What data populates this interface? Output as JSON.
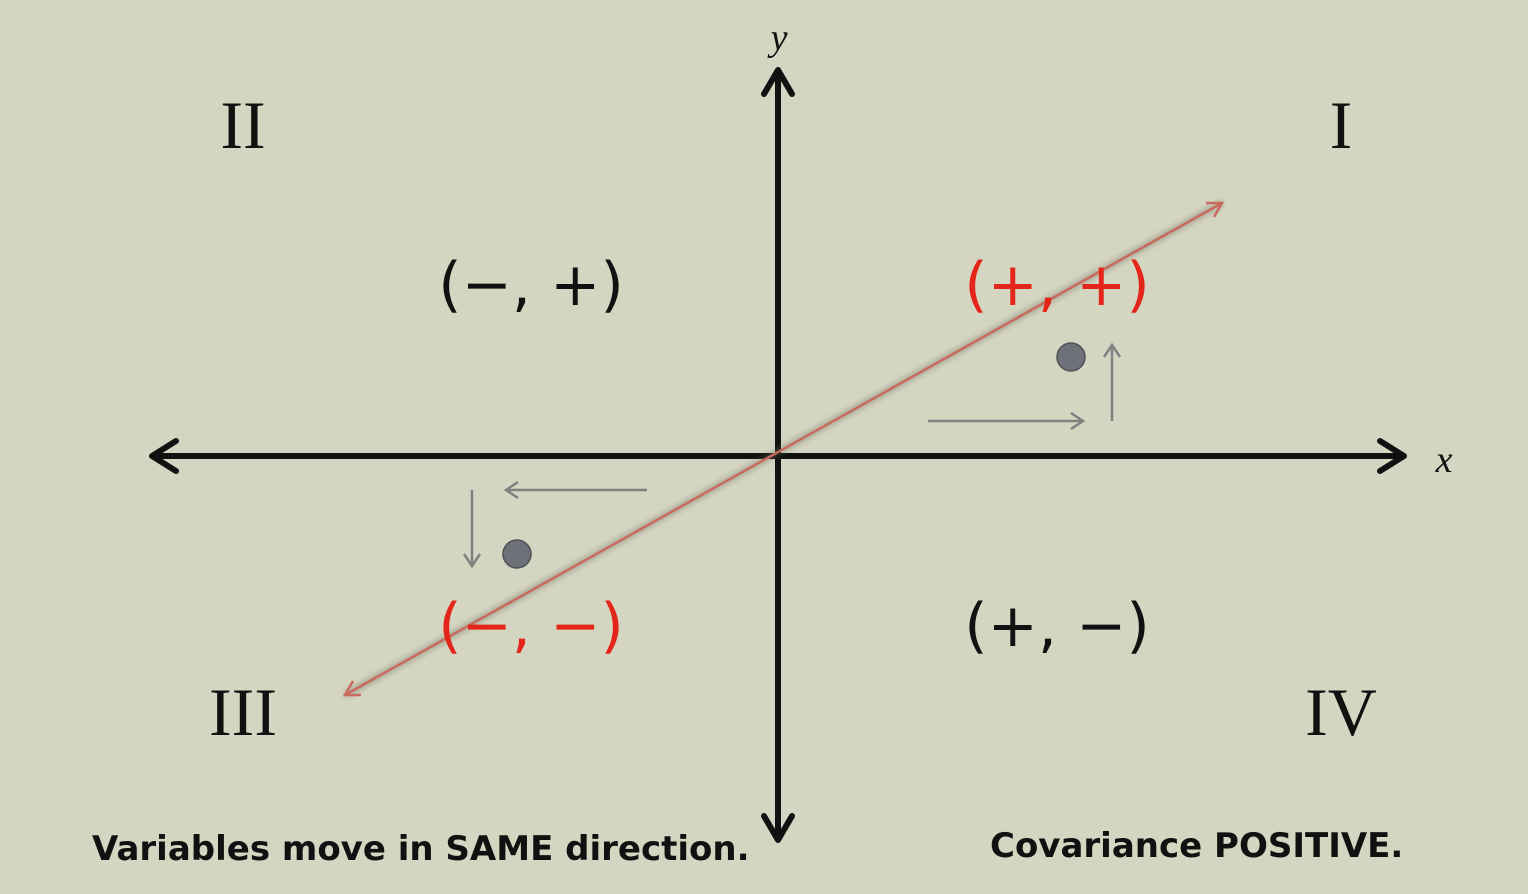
{
  "colors": {
    "background": "#d4d6c1",
    "axis": "#111111",
    "highlight": "#e32619",
    "trend_line": "#c86a5e",
    "point": "#6e7177",
    "guide_arrow": "#808080",
    "label": "#111111"
  },
  "axes": {
    "x_label": "x",
    "y_label": "y"
  },
  "quadrants": {
    "I": {
      "numeral": "I",
      "signs": "(+, +)",
      "highlighted": true
    },
    "II": {
      "numeral": "II",
      "signs": "(−, +)",
      "highlighted": false
    },
    "III": {
      "numeral": "III",
      "signs": "(−, −)",
      "highlighted": true
    },
    "IV": {
      "numeral": "IV",
      "signs": "(+, −)",
      "highlighted": false
    }
  },
  "captions": {
    "left": "Variables move in SAME direction.",
    "right": "Covariance POSITIVE."
  },
  "sample_points": [
    {
      "quadrant": "I"
    },
    {
      "quadrant": "III"
    }
  ]
}
